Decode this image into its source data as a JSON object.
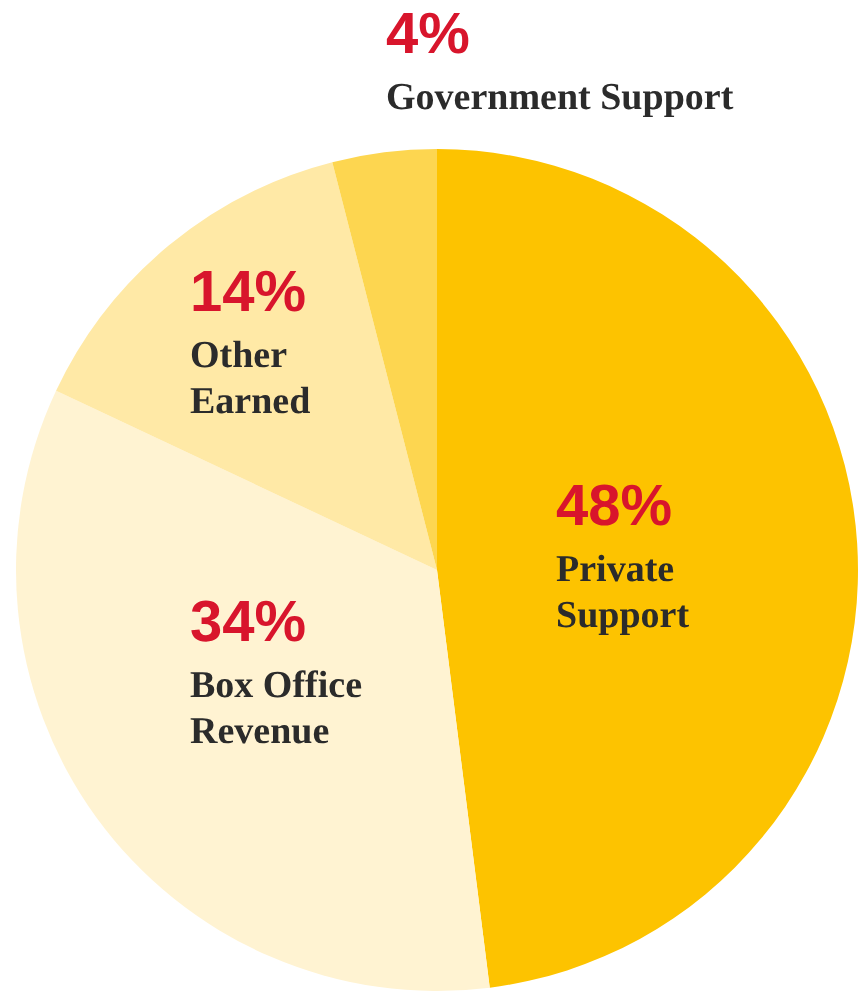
{
  "chart_data": {
    "type": "pie",
    "categories": [
      "Private Support",
      "Box Office Revenue",
      "Other Earned",
      "Government Support"
    ],
    "values": [
      48,
      34,
      14,
      4
    ],
    "value_labels": [
      "48%",
      "34%",
      "14%",
      "4%"
    ],
    "colors": [
      "#fdc300",
      "#fff3d2",
      "#ffe9a6",
      "#fdd650"
    ],
    "legend": false
  }
}
